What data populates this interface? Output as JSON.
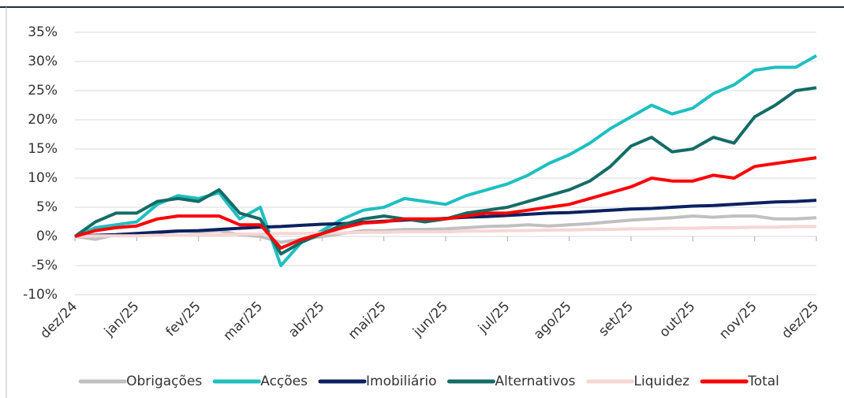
{
  "chart_data": {
    "type": "line",
    "categories": [
      "dez/24",
      null,
      null,
      "jan/25",
      null,
      null,
      "fev/25",
      null,
      null,
      "mar/25",
      null,
      null,
      "abr/25",
      null,
      null,
      "mai/25",
      null,
      null,
      "jun/25",
      null,
      null,
      "jul/25",
      null,
      null,
      "ago/25",
      null,
      null,
      "set/25",
      null,
      null,
      "out/25",
      null,
      null,
      "nov/25",
      null,
      null,
      "dez/25"
    ],
    "series": [
      {
        "name": "Obrigações",
        "color": "#c0c0c0",
        "values": [
          0,
          -0.5,
          0.3,
          0.5,
          0.8,
          1,
          0.8,
          1,
          0.3,
          0,
          -1,
          -0.5,
          0,
          0.5,
          1,
          1,
          1.2,
          1.2,
          1.3,
          1.5,
          1.7,
          1.8,
          2,
          1.8,
          2,
          2.2,
          2.5,
          2.8,
          3,
          3.2,
          3.5,
          3.3,
          3.5,
          3.5,
          3,
          3,
          3.2
        ]
      },
      {
        "name": "Acções",
        "color": "#1fbfc0",
        "values": [
          0,
          1.5,
          2,
          2.5,
          5.5,
          7,
          6.5,
          7.5,
          3,
          5,
          -5,
          -1,
          1,
          3,
          4.5,
          5,
          6.5,
          6,
          5.5,
          7,
          8,
          9,
          10.5,
          12.5,
          14,
          16,
          18.5,
          20.5,
          22.5,
          21,
          22,
          24.5,
          26,
          28.5,
          29,
          29,
          31
        ]
      },
      {
        "name": "Imobiliário",
        "color": "#0b2160",
        "values": [
          0,
          0.2,
          0.3,
          0.5,
          0.7,
          0.9,
          1.0,
          1.2,
          1.4,
          1.6,
          1.7,
          1.9,
          2.1,
          2.2,
          2.4,
          2.6,
          2.8,
          2.9,
          3.1,
          3.3,
          3.4,
          3.6,
          3.8,
          4.0,
          4.1,
          4.3,
          4.5,
          4.7,
          4.8,
          5.0,
          5.2,
          5.3,
          5.5,
          5.7,
          5.9,
          6.0,
          6.2
        ]
      },
      {
        "name": "Alternativos",
        "color": "#146c65",
        "values": [
          0,
          2.5,
          4,
          4,
          6,
          6.5,
          6,
          8,
          4,
          3,
          -3,
          -1,
          0.5,
          2,
          3,
          3.5,
          3,
          2.5,
          3,
          4,
          4.5,
          5,
          6,
          7,
          8,
          9.5,
          12,
          15.5,
          17,
          14.5,
          15,
          17,
          16,
          20.5,
          22.5,
          25,
          25.5
        ]
      },
      {
        "name": "Liquidez",
        "color": "#f7d6d4",
        "values": [
          0,
          0.1,
          0.1,
          0.1,
          0.2,
          0.2,
          0.3,
          0.3,
          0.4,
          0.4,
          0.5,
          0.5,
          0.6,
          0.6,
          0.7,
          0.7,
          0.8,
          0.8,
          0.8,
          0.9,
          0.9,
          1.0,
          1.0,
          1.1,
          1.1,
          1.2,
          1.2,
          1.3,
          1.3,
          1.4,
          1.4,
          1.5,
          1.5,
          1.6,
          1.6,
          1.7,
          1.7
        ]
      },
      {
        "name": "Total",
        "color": "#ff0000",
        "values": [
          0,
          1,
          1.5,
          1.8,
          3,
          3.5,
          3.5,
          3.5,
          2,
          2,
          -2,
          -0.5,
          0.5,
          1.5,
          2.3,
          2.5,
          3,
          3,
          3,
          3.5,
          4,
          4,
          4.5,
          5,
          5.5,
          6.5,
          7.5,
          8.5,
          10,
          9.5,
          9.5,
          10.5,
          10,
          12,
          12.5,
          13,
          13.5
        ]
      }
    ],
    "ylim": [
      -10,
      35
    ],
    "yticks": [
      {
        "value": -10,
        "label": "-10%"
      },
      {
        "value": -5,
        "label": "-5%"
      },
      {
        "value": 0,
        "label": "0%"
      },
      {
        "value": 5,
        "label": "5%"
      },
      {
        "value": 10,
        "label": "10%"
      },
      {
        "value": 15,
        "label": "15%"
      },
      {
        "value": 20,
        "label": "20%"
      },
      {
        "value": 25,
        "label": "25%"
      },
      {
        "value": 30,
        "label": "30%"
      },
      {
        "value": 35,
        "label": "35%"
      }
    ],
    "grid": true,
    "legend": "bottom"
  }
}
